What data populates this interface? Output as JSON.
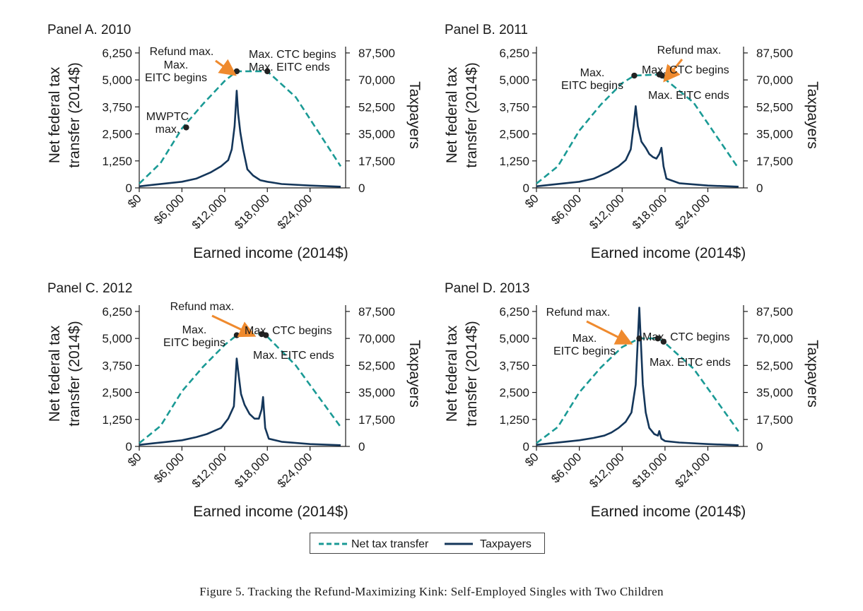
{
  "caption": "Figure 5. Tracking the Refund-Maximizing Kink: Self-Employed Singles with Two Children",
  "colors": {
    "transfer": "#1a9a95",
    "taxpayers": "#14365a",
    "arrow": "#ef8a2e",
    "axis": "#1a1a1a"
  },
  "legend": {
    "transfer_label": "Net tax transfer",
    "taxpayers_label": "Taxpayers"
  },
  "chart_data": [
    {
      "type": "line",
      "title": "Panel A. 2010",
      "xlabel": "Earned income (2014$)",
      "ylabel_left": [
        "Net federal tax",
        "transfer (2014$)"
      ],
      "ylabel_right": "Taxpayers",
      "xlim": [
        0,
        29000
      ],
      "ylim_left": [
        0,
        7000
      ],
      "ylim_right": [
        0,
        98000
      ],
      "x_ticks": [
        "$0",
        "$6,000",
        "$12,000",
        "$18,000",
        "$24,000"
      ],
      "x_tick_values": [
        0,
        6000,
        12000,
        18000,
        24000
      ],
      "y_left_ticks": [
        "0",
        "1,250",
        "2,500",
        "3,750",
        "5,000",
        "6,250"
      ],
      "y_left_tick_values": [
        0,
        1250,
        2500,
        3750,
        5000,
        6250
      ],
      "y_right_ticks": [
        "0",
        "17,500",
        "35,000",
        "52,500",
        "70,000",
        "87,500"
      ],
      "y_right_tick_values": [
        0,
        17500,
        35000,
        52500,
        70000,
        87500
      ],
      "series": [
        {
          "name": "Net tax transfer",
          "axis": "left",
          "style": "dashed",
          "x": [
            0,
            3000,
            6000,
            9000,
            12000,
            13700,
            18000,
            22000,
            28300
          ],
          "y": [
            200,
            1150,
            2750,
            3900,
            4950,
            5400,
            5400,
            4200,
            1000
          ]
        },
        {
          "name": "Taxpayers",
          "axis": "right",
          "style": "solid",
          "x": [
            0,
            2000,
            4000,
            6000,
            8000,
            10000,
            11500,
            12500,
            13000,
            13400,
            13700,
            13900,
            14200,
            14600,
            15200,
            16000,
            17000,
            18000,
            20000,
            24000,
            28300
          ],
          "y": [
            1000,
            2000,
            3000,
            4000,
            6000,
            10000,
            14000,
            18000,
            25000,
            40000,
            63000,
            48000,
            36000,
            25000,
            12000,
            8000,
            5000,
            4000,
            2500,
            1500,
            800
          ]
        }
      ],
      "points": [
        {
          "x": 6600,
          "y": 2800
        },
        {
          "x": 13700,
          "y": 5400
        },
        {
          "x": 18000,
          "y": 5400
        }
      ],
      "annotations": [
        {
          "lines": [
            "MWPTC",
            "max."
          ]
        },
        {
          "lines": [
            "Refund max."
          ]
        },
        {
          "lines": [
            "Max.",
            "EITC begins"
          ]
        },
        {
          "lines": [
            "Max. CTC begins",
            "Max. EITC ends"
          ]
        }
      ]
    },
    {
      "type": "line",
      "title": "Panel B. 2011",
      "xlabel": "Earned income (2014$)",
      "ylabel_left": [
        "Net federal tax",
        "transfer (2014$)"
      ],
      "ylabel_right": "Taxpayers",
      "xlim": [
        0,
        29000
      ],
      "ylim_left": [
        0,
        7000
      ],
      "ylim_right": [
        0,
        98000
      ],
      "x_ticks": [
        "$0",
        "$6,000",
        "$12,000",
        "$18,000",
        "$24,000"
      ],
      "x_tick_values": [
        0,
        6000,
        12000,
        18000,
        24000
      ],
      "y_left_ticks": [
        "0",
        "1,250",
        "2,500",
        "3,750",
        "5,000",
        "6,250"
      ],
      "y_left_tick_values": [
        0,
        1250,
        2500,
        3750,
        5000,
        6250
      ],
      "y_right_ticks": [
        "0",
        "17,500",
        "35,000",
        "52,500",
        "70,000",
        "87,500"
      ],
      "y_right_tick_values": [
        0,
        17500,
        35000,
        52500,
        70000,
        87500
      ],
      "series": [
        {
          "name": "Net tax transfer",
          "axis": "left",
          "style": "dashed",
          "x": [
            0,
            3000,
            6000,
            9000,
            12000,
            13700,
            17200,
            17600,
            22000,
            28300
          ],
          "y": [
            200,
            1000,
            2650,
            3850,
            4850,
            5200,
            5250,
            5150,
            3950,
            900
          ]
        },
        {
          "name": "Taxpayers",
          "axis": "right",
          "style": "solid",
          "x": [
            0,
            2000,
            4000,
            6000,
            8000,
            10000,
            11500,
            12500,
            13200,
            13600,
            13900,
            14200,
            14700,
            15300,
            15800,
            16300,
            16800,
            17200,
            17500,
            17800,
            18200,
            20000,
            24000,
            28300
          ],
          "y": [
            1000,
            2000,
            3000,
            4000,
            6000,
            10000,
            14000,
            18000,
            25000,
            40000,
            53000,
            40000,
            30000,
            26000,
            22000,
            20000,
            19000,
            22000,
            26000,
            14000,
            6000,
            3000,
            1500,
            800
          ]
        }
      ],
      "points": [
        {
          "x": 13700,
          "y": 5200
        },
        {
          "x": 17200,
          "y": 5250
        },
        {
          "x": 17600,
          "y": 5200
        }
      ],
      "annotations": [
        {
          "lines": [
            "Refund max."
          ]
        },
        {
          "lines": [
            "Max.",
            "EITC begins"
          ]
        },
        {
          "lines": [
            "Max. CTC begins"
          ]
        },
        {
          "lines": [
            "Max. EITC ends"
          ]
        }
      ]
    },
    {
      "type": "line",
      "title": "Panel C. 2012",
      "xlabel": "Earned income (2014$)",
      "ylabel_left": [
        "Net federal tax",
        "transfer (2014$)"
      ],
      "ylabel_right": "Taxpayers",
      "xlim": [
        0,
        29000
      ],
      "ylim_left": [
        0,
        7000
      ],
      "ylim_right": [
        0,
        98000
      ],
      "x_ticks": [
        "$0",
        "$6,000",
        "$12,000",
        "$18,000",
        "$24,000"
      ],
      "x_tick_values": [
        0,
        6000,
        12000,
        18000,
        24000
      ],
      "y_left_ticks": [
        "0",
        "1,250",
        "2,500",
        "3,750",
        "5,000",
        "6,250"
      ],
      "y_left_tick_values": [
        0,
        1250,
        2500,
        3750,
        5000,
        6250
      ],
      "y_right_ticks": [
        "0",
        "17,500",
        "35,000",
        "52,500",
        "70,000",
        "87,500"
      ],
      "y_right_tick_values": [
        0,
        17500,
        35000,
        52500,
        70000,
        87500
      ],
      "series": [
        {
          "name": "Net tax transfer",
          "axis": "left",
          "style": "dashed",
          "x": [
            0,
            3000,
            6000,
            9000,
            12000,
            13700,
            17200,
            17800,
            22000,
            28300
          ],
          "y": [
            150,
            950,
            2550,
            3700,
            4700,
            5150,
            5200,
            5150,
            3750,
            900
          ]
        },
        {
          "name": "Taxpayers",
          "axis": "right",
          "style": "solid",
          "x": [
            0,
            2000,
            4000,
            6000,
            8000,
            9500,
            10500,
            11500,
            12500,
            13300,
            13700,
            14000,
            14300,
            14800,
            15500,
            16200,
            16800,
            17200,
            17400,
            17700,
            18200,
            20000,
            24000,
            28300
          ],
          "y": [
            1000,
            2000,
            3000,
            4000,
            6000,
            8000,
            10000,
            12000,
            18000,
            26000,
            57000,
            45000,
            34000,
            27000,
            21000,
            18000,
            18000,
            24000,
            32000,
            12000,
            5000,
            3000,
            1500,
            800
          ]
        }
      ],
      "points": [
        {
          "x": 13700,
          "y": 5150
        },
        {
          "x": 17200,
          "y": 5200
        },
        {
          "x": 17800,
          "y": 5150
        }
      ],
      "annotations": [
        {
          "lines": [
            "Refund max."
          ]
        },
        {
          "lines": [
            "Max.",
            "EITC begins"
          ]
        },
        {
          "lines": [
            "Max. CTC begins"
          ]
        },
        {
          "lines": [
            "Max. EITC ends"
          ]
        }
      ]
    },
    {
      "type": "line",
      "title": "Panel D. 2013",
      "xlabel": "Earned income (2014$)",
      "ylabel_left": [
        "Net federal tax",
        "transfer (2014$)"
      ],
      "ylabel_right": "Taxpayers",
      "xlim": [
        0,
        29000
      ],
      "ylim_left": [
        0,
        7000
      ],
      "ylim_right": [
        0,
        98000
      ],
      "x_ticks": [
        "$0",
        "$6,000",
        "$12,000",
        "$18,000",
        "$24,000"
      ],
      "x_tick_values": [
        0,
        6000,
        12000,
        18000,
        24000
      ],
      "y_left_ticks": [
        "0",
        "1,250",
        "2,500",
        "3,750",
        "5,000",
        "6,250"
      ],
      "y_left_tick_values": [
        0,
        1250,
        2500,
        3750,
        5000,
        6250
      ],
      "y_right_ticks": [
        "0",
        "17,500",
        "35,000",
        "52,500",
        "70,000",
        "87,500"
      ],
      "y_right_tick_values": [
        0,
        17500,
        35000,
        52500,
        70000,
        87500
      ],
      "series": [
        {
          "name": "Net tax transfer",
          "axis": "left",
          "style": "dashed",
          "x": [
            0,
            3000,
            6000,
            9000,
            12000,
            14400,
            17000,
            17800,
            22000,
            28300
          ],
          "y": [
            150,
            900,
            2500,
            3650,
            4600,
            5000,
            5000,
            4850,
            3600,
            700
          ]
        },
        {
          "name": "Taxpayers",
          "axis": "right",
          "style": "solid",
          "x": [
            0,
            2000,
            4000,
            6000,
            8000,
            9500,
            10500,
            11500,
            12500,
            13300,
            13900,
            14200,
            14400,
            14600,
            14900,
            15300,
            15800,
            16500,
            17000,
            17200,
            17500,
            18000,
            20000,
            24000,
            28300
          ],
          "y": [
            1000,
            2000,
            3000,
            4000,
            5500,
            7000,
            9000,
            12000,
            16000,
            22000,
            40000,
            70000,
            90000,
            70000,
            40000,
            22000,
            12000,
            8000,
            7000,
            10000,
            5000,
            3500,
            2500,
            1500,
            800
          ]
        }
      ],
      "points": [
        {
          "x": 14400,
          "y": 5000
        },
        {
          "x": 17000,
          "y": 5000
        },
        {
          "x": 17800,
          "y": 4850
        }
      ],
      "annotations": [
        {
          "lines": [
            "Refund max."
          ]
        },
        {
          "lines": [
            "Max.",
            "EITC begins"
          ]
        },
        {
          "lines": [
            "Max. CTC begins"
          ]
        },
        {
          "lines": [
            "Max. EITC ends"
          ]
        }
      ]
    }
  ]
}
